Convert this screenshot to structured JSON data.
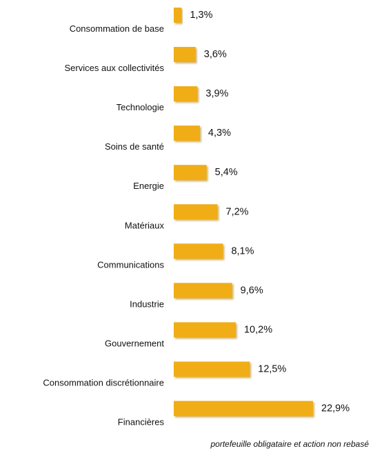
{
  "chart_data": {
    "type": "bar",
    "orientation": "horizontal",
    "categories": [
      "Consommation de base",
      "Services aux collectivités",
      "Technologie",
      "Soins de santé",
      "Energie",
      "Matériaux",
      "Communications",
      "Industrie",
      "Gouvernement",
      "Consommation discrétionnaire",
      "Financières"
    ],
    "values": [
      1.3,
      3.6,
      3.9,
      4.3,
      5.4,
      7.2,
      8.1,
      9.6,
      10.2,
      12.5,
      22.9
    ],
    "value_labels": [
      "1,3%",
      "3,6%",
      "3,9%",
      "4,3%",
      "5,4%",
      "7,2%",
      "8,1%",
      "9,6%",
      "10,2%",
      "12,5%",
      "22,9%"
    ],
    "title": "",
    "xlabel": "",
    "ylabel": "",
    "xlim": [
      0,
      25
    ],
    "grid": false,
    "legend": "none",
    "bar_color": "#F0AD12",
    "bar_shadow_color": "#C98A00",
    "note": "portefeuille obligataire et action non rebasé"
  }
}
